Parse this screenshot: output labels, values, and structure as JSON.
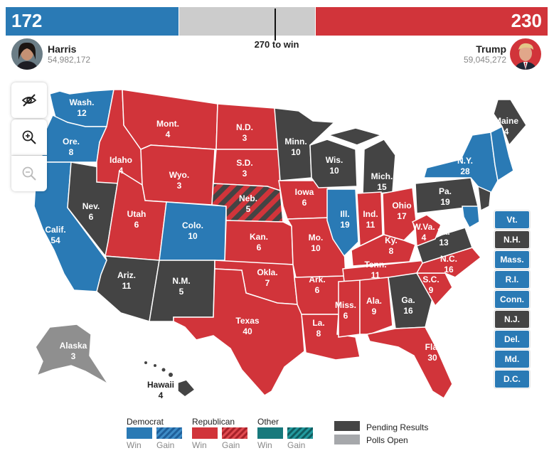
{
  "scoreboard": {
    "dem_total": "172",
    "rep_total": "230",
    "threshold_label": "270 to win",
    "dem_ev": 172,
    "rep_ev": 230,
    "pending_ev": 136,
    "total_ev": 538
  },
  "candidates": {
    "dem": {
      "name": "Harris",
      "votes": "54,982,172"
    },
    "rep": {
      "name": "Trump",
      "votes": "59,045,272"
    }
  },
  "controls": {
    "toggle_icon": "eye-slash-icon",
    "zoom_in_icon": "zoom-in-icon",
    "zoom_out_icon": "zoom-out-icon"
  },
  "colors": {
    "dem": "#2a7ab5",
    "rep": "#d1343a",
    "pending": "#444444",
    "other": "#17797c",
    "polls_open": "#a6a8ab",
    "tossup_bar": "#cccccc"
  },
  "states": [
    {
      "abbr": "Wash.",
      "ev": "12",
      "status": "dem"
    },
    {
      "abbr": "Ore.",
      "ev": "8",
      "status": "dem"
    },
    {
      "abbr": "Calif.",
      "ev": "54",
      "status": "dem"
    },
    {
      "abbr": "Nev.",
      "ev": "6",
      "status": "pending"
    },
    {
      "abbr": "Idaho",
      "ev": "4",
      "status": "rep"
    },
    {
      "abbr": "Mont.",
      "ev": "4",
      "status": "rep"
    },
    {
      "abbr": "Wyo.",
      "ev": "3",
      "status": "rep"
    },
    {
      "abbr": "Utah",
      "ev": "6",
      "status": "rep"
    },
    {
      "abbr": "Colo.",
      "ev": "10",
      "status": "dem"
    },
    {
      "abbr": "Ariz.",
      "ev": "11",
      "status": "pending"
    },
    {
      "abbr": "N.M.",
      "ev": "5",
      "status": "pending"
    },
    {
      "abbr": "N.D.",
      "ev": "3",
      "status": "rep"
    },
    {
      "abbr": "S.D.",
      "ev": "3",
      "status": "rep"
    },
    {
      "abbr": "Neb.",
      "ev": "5",
      "status": "split"
    },
    {
      "abbr": "Kan.",
      "ev": "6",
      "status": "rep"
    },
    {
      "abbr": "Okla.",
      "ev": "7",
      "status": "rep"
    },
    {
      "abbr": "Texas",
      "ev": "40",
      "status": "rep"
    },
    {
      "abbr": "Minn.",
      "ev": "10",
      "status": "pending"
    },
    {
      "abbr": "Iowa",
      "ev": "6",
      "status": "rep"
    },
    {
      "abbr": "Mo.",
      "ev": "10",
      "status": "rep"
    },
    {
      "abbr": "Ark.",
      "ev": "6",
      "status": "rep"
    },
    {
      "abbr": "La.",
      "ev": "8",
      "status": "rep"
    },
    {
      "abbr": "Wis.",
      "ev": "10",
      "status": "pending"
    },
    {
      "abbr": "Ill.",
      "ev": "19",
      "status": "dem"
    },
    {
      "abbr": "Mich.",
      "ev": "15",
      "status": "pending"
    },
    {
      "abbr": "Ind.",
      "ev": "11",
      "status": "rep"
    },
    {
      "abbr": "Ohio",
      "ev": "17",
      "status": "rep"
    },
    {
      "abbr": "Ky.",
      "ev": "8",
      "status": "rep"
    },
    {
      "abbr": "Tenn.",
      "ev": "11",
      "status": "rep"
    },
    {
      "abbr": "Miss.",
      "ev": "6",
      "status": "rep"
    },
    {
      "abbr": "Ala.",
      "ev": "9",
      "status": "rep"
    },
    {
      "abbr": "Ga.",
      "ev": "16",
      "status": "pending"
    },
    {
      "abbr": "Fla.",
      "ev": "30",
      "status": "rep"
    },
    {
      "abbr": "S.C.",
      "ev": "9",
      "status": "rep"
    },
    {
      "abbr": "N.C.",
      "ev": "16",
      "status": "rep"
    },
    {
      "abbr": "Va.",
      "ev": "13",
      "status": "pending"
    },
    {
      "abbr": "W.Va.",
      "ev": "4",
      "status": "rep"
    },
    {
      "abbr": "Pa.",
      "ev": "19",
      "status": "pending"
    },
    {
      "abbr": "N.Y.",
      "ev": "28",
      "status": "dem"
    },
    {
      "abbr": "Maine",
      "ev": "4",
      "status": "pending"
    },
    {
      "abbr": "Alaska",
      "ev": "3",
      "status": "polls_open"
    },
    {
      "abbr": "Hawaii",
      "ev": "4",
      "status": "pending"
    }
  ],
  "small_states": [
    {
      "abbr": "Vt.",
      "status": "dem"
    },
    {
      "abbr": "N.H.",
      "status": "pending"
    },
    {
      "abbr": "Mass.",
      "status": "dem"
    },
    {
      "abbr": "R.I.",
      "status": "dem"
    },
    {
      "abbr": "Conn.",
      "status": "dem"
    },
    {
      "abbr": "N.J.",
      "status": "pending"
    },
    {
      "abbr": "Del.",
      "status": "dem"
    },
    {
      "abbr": "Md.",
      "status": "dem"
    },
    {
      "abbr": "D.C.",
      "status": "dem"
    }
  ],
  "legend": {
    "dem_title": "Democrat",
    "rep_title": "Republican",
    "other_title": "Other",
    "win": "Win",
    "gain": "Gain",
    "pending": "Pending Results",
    "polls_open": "Polls Open"
  }
}
